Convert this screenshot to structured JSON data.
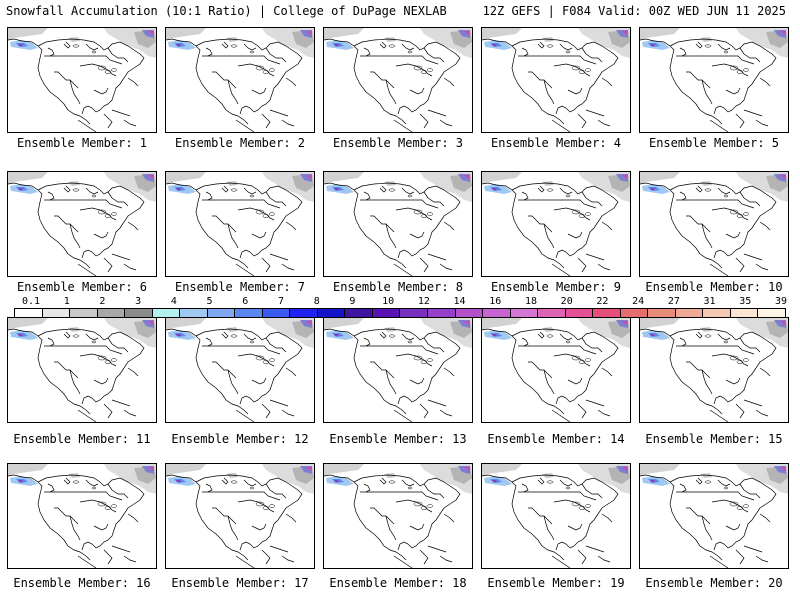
{
  "header": {
    "left": "Snowfall Accumulation (10:1 Ratio) | College of DuPage NEXLAB",
    "right": "12Z GEFS | F084 Valid: 00Z WED JUN 11 2025"
  },
  "panels": [
    {
      "label": "Ensemble Member: 1"
    },
    {
      "label": "Ensemble Member: 2"
    },
    {
      "label": "Ensemble Member: 3"
    },
    {
      "label": "Ensemble Member: 4"
    },
    {
      "label": "Ensemble Member: 5"
    },
    {
      "label": "Ensemble Member: 6"
    },
    {
      "label": "Ensemble Member: 7"
    },
    {
      "label": "Ensemble Member: 8"
    },
    {
      "label": "Ensemble Member: 9"
    },
    {
      "label": "Ensemble Member: 10"
    },
    {
      "label": "Ensemble Member: 11"
    },
    {
      "label": "Ensemble Member: 12"
    },
    {
      "label": "Ensemble Member: 13"
    },
    {
      "label": "Ensemble Member: 14"
    },
    {
      "label": "Ensemble Member: 15"
    },
    {
      "label": "Ensemble Member: 16"
    },
    {
      "label": "Ensemble Member: 17"
    },
    {
      "label": "Ensemble Member: 18"
    },
    {
      "label": "Ensemble Member: 19"
    },
    {
      "label": "Ensemble Member: 20"
    }
  ],
  "colorbar": {
    "labels": [
      "0.1",
      "1",
      "2",
      "3",
      "4",
      "5",
      "6",
      "7",
      "8",
      "9",
      "10",
      "12",
      "14",
      "16",
      "18",
      "20",
      "22",
      "24",
      "27",
      "31",
      "35",
      "39"
    ],
    "colors": [
      "#ffffff",
      "#e6e6e6",
      "#c8c8c8",
      "#a8a8a8",
      "#8c8c8c",
      "#b4f0f0",
      "#a0c8f0",
      "#80a8f0",
      "#5a87f0",
      "#3a5af0",
      "#2020f0",
      "#1414c8",
      "#3c14a0",
      "#5a14b4",
      "#7832be",
      "#9640c8",
      "#b450c8",
      "#c864d2",
      "#d278d2",
      "#dc64b4",
      "#e65096",
      "#e65078",
      "#e66e6e",
      "#e68c78",
      "#eeaa96",
      "#f5c8b4",
      "#fae6d2",
      "#fff5e6"
    ]
  }
}
